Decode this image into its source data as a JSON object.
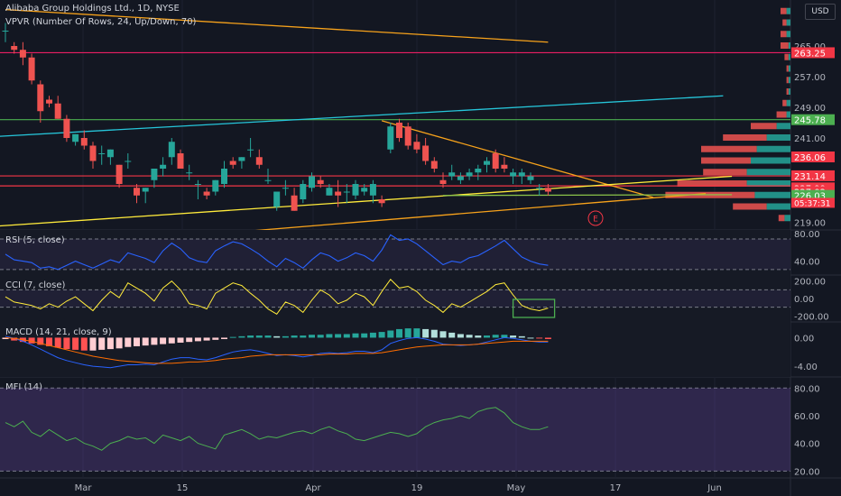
{
  "header": {
    "title": "Alibaba Group Holdings Ltd., 1D, NYSE",
    "vpvr": "VPVR (Number Of Rows, 24, Up/Down, 70)",
    "currency": "USD"
  },
  "earnings_marker": "E",
  "countdown": "05:37:31",
  "chart_data": [
    {
      "type": "candlestick",
      "name": "price",
      "y_range": [
        217,
        277
      ],
      "y_ticks": [
        "265.00",
        "257.00",
        "249.00",
        "241.00",
        "219.00"
      ],
      "x_ticks": [
        "Mar",
        "15",
        "Apr",
        "19",
        "May",
        "17",
        "Jun"
      ],
      "candles": [
        [
          269,
          271,
          266,
          269
        ],
        [
          265,
          266,
          263,
          264
        ],
        [
          264,
          266,
          260,
          262
        ],
        [
          262,
          263,
          255,
          256
        ],
        [
          255,
          256,
          245,
          248
        ],
        [
          251,
          252,
          249,
          250
        ],
        [
          250,
          252,
          246,
          246
        ],
        [
          246,
          247,
          240,
          241
        ],
        [
          240,
          242,
          239,
          242
        ],
        [
          241,
          243,
          238,
          239
        ],
        [
          239,
          240,
          233,
          235
        ],
        [
          237,
          239,
          234,
          237
        ],
        [
          236,
          238,
          234,
          238
        ],
        [
          234,
          234,
          228,
          229
        ],
        [
          235,
          237,
          233,
          235
        ],
        [
          228,
          229,
          224,
          226
        ],
        [
          227,
          228,
          224,
          228
        ],
        [
          230,
          233,
          228,
          233
        ],
        [
          233,
          236,
          231,
          234
        ],
        [
          236,
          241,
          234,
          240
        ],
        [
          237,
          238,
          233,
          233
        ],
        [
          232,
          234,
          230,
          232
        ],
        [
          229,
          230,
          225,
          229
        ],
        [
          227,
          228,
          225,
          226
        ],
        [
          227,
          230,
          226,
          230
        ],
        [
          229,
          235,
          228,
          233
        ],
        [
          235,
          236,
          233,
          234
        ],
        [
          235,
          236,
          233,
          236
        ],
        [
          238,
          241,
          236,
          238
        ],
        [
          236,
          238,
          233,
          234
        ],
        [
          230,
          233,
          229,
          230
        ],
        [
          223,
          227,
          222,
          227
        ],
        [
          228,
          230,
          226,
          228
        ],
        [
          226,
          228,
          222,
          222
        ],
        [
          225,
          230,
          224,
          229
        ],
        [
          228,
          232,
          227,
          231
        ],
        [
          230,
          231,
          228,
          229
        ],
        [
          226,
          229,
          226,
          228
        ],
        [
          227,
          230,
          223,
          226
        ],
        [
          227,
          229,
          224,
          227
        ],
        [
          226,
          230,
          225,
          229
        ],
        [
          227,
          229,
          226,
          228
        ],
        [
          226,
          230,
          224,
          229
        ],
        [
          225,
          226,
          223,
          224
        ],
        [
          238,
          245,
          237,
          244
        ],
        [
          245,
          246,
          240,
          241
        ],
        [
          244,
          245,
          238,
          239
        ],
        [
          240,
          242,
          237,
          238
        ],
        [
          239,
          241,
          234,
          235
        ],
        [
          235,
          236,
          232,
          233
        ],
        [
          230,
          232,
          228,
          229
        ],
        [
          231,
          234,
          230,
          232
        ],
        [
          230,
          232,
          229,
          231
        ],
        [
          231,
          233,
          230,
          232
        ],
        [
          232,
          234,
          230,
          233
        ],
        [
          234,
          236,
          232,
          235
        ],
        [
          237,
          238,
          232,
          233
        ],
        [
          234,
          236,
          232,
          233
        ],
        [
          231,
          233,
          229,
          232
        ],
        [
          231,
          233,
          229,
          232
        ],
        [
          230,
          232,
          229,
          231
        ],
        [
          228,
          229,
          226,
          228
        ],
        [
          228,
          229,
          226,
          227
        ]
      ],
      "price_labels": [
        {
          "value": 263.25,
          "text": "263.25",
          "color": "#f23645"
        },
        {
          "value": 245.78,
          "text": "245.78",
          "color": "#4caf50"
        },
        {
          "value": 236.06,
          "text": "236.06",
          "color": "#f23645"
        },
        {
          "value": 231.14,
          "text": "231.14",
          "color": "#f23645"
        },
        {
          "value": 227.99,
          "text": "227.99",
          "color": "#f23645"
        },
        {
          "value": 227.02,
          "text": "227.02",
          "color": "#f23645"
        },
        {
          "value": 226.03,
          "text": "226.03",
          "color": "#4caf50"
        }
      ],
      "drawings": [
        {
          "kind": "trendline",
          "color": "#f7a21b",
          "points": [
            [
              0,
              274.5
            ],
            [
              62,
              266
            ]
          ]
        },
        {
          "kind": "horizontal",
          "color": "#e91e63",
          "value": 263.25
        },
        {
          "kind": "horizontal",
          "color": "#4caf50",
          "value": 245.78
        },
        {
          "kind": "trendline",
          "color": "#26c6da",
          "points": [
            [
              -8,
              240.5
            ],
            [
              82,
              252
            ]
          ]
        },
        {
          "kind": "horizontal",
          "color": "#f23645",
          "value": 231.1
        },
        {
          "kind": "horizontal",
          "color": "#f23645",
          "value": 228.5
        },
        {
          "kind": "trendline",
          "color": "#f7a21b",
          "points": [
            [
              43,
              245.5
            ],
            [
              74,
              225.5
            ]
          ]
        },
        {
          "kind": "trendline",
          "color": "#ffeb3b",
          "points": [
            [
              -1,
              218
            ],
            [
              83,
              231
            ]
          ]
        },
        {
          "kind": "trendline",
          "color": "#f7a21b",
          "points": [
            [
              -8,
              210
            ],
            [
              80,
              226.5
            ]
          ]
        },
        {
          "kind": "trendline",
          "color": "#8bc34a",
          "points": [
            [
              50,
              226
            ],
            [
              83,
              226.2
            ]
          ]
        }
      ],
      "volume_profile": [
        {
          "price": 274,
          "up": 2,
          "down": 3
        },
        {
          "price": 271,
          "up": 2,
          "down": 2
        },
        {
          "price": 268,
          "up": 2,
          "down": 3
        },
        {
          "price": 265,
          "up": 1,
          "down": 4
        },
        {
          "price": 262,
          "up": 1,
          "down": 2
        },
        {
          "price": 259,
          "up": 1,
          "down": 1
        },
        {
          "price": 256,
          "up": 1,
          "down": 1
        },
        {
          "price": 253,
          "up": 1,
          "down": 1
        },
        {
          "price": 250,
          "up": 2,
          "down": 2
        },
        {
          "price": 247,
          "up": 2,
          "down": 5
        },
        {
          "price": 244,
          "up": 7,
          "down": 13
        },
        {
          "price": 241,
          "up": 12,
          "down": 22
        },
        {
          "price": 238,
          "up": 17,
          "down": 28
        },
        {
          "price": 235,
          "up": 20,
          "down": 25
        },
        {
          "price": 232,
          "up": 22,
          "down": 22
        },
        {
          "price": 229,
          "up": 22,
          "down": 35
        },
        {
          "price": 226,
          "up": 18,
          "down": 45
        },
        {
          "price": 223,
          "up": 12,
          "down": 17
        },
        {
          "price": 220,
          "up": 3,
          "down": 3
        }
      ]
    },
    {
      "type": "line",
      "name": "RSI (5, close)",
      "y_range": [
        20,
        85
      ],
      "y_ticks": [
        "80.00",
        "40.00"
      ],
      "bands": [
        72,
        28
      ],
      "values": [
        50,
        42,
        40,
        38,
        30,
        32,
        28,
        34,
        40,
        35,
        30,
        36,
        42,
        38,
        52,
        48,
        44,
        38,
        55,
        66,
        58,
        45,
        40,
        38,
        55,
        62,
        68,
        65,
        58,
        50,
        40,
        32,
        44,
        38,
        30,
        42,
        52,
        48,
        40,
        45,
        52,
        48,
        40,
        56,
        78,
        70,
        72,
        65,
        55,
        45,
        35,
        40,
        38,
        45,
        48,
        55,
        62,
        70,
        58,
        46,
        40,
        36,
        34
      ],
      "color": "#2962ff"
    },
    {
      "type": "line",
      "name": "CCI (7, close)",
      "y_range": [
        -270,
        270
      ],
      "y_ticks": [
        "200.00",
        "0.00",
        "-200.00"
      ],
      "bands": [
        100,
        -100
      ],
      "values": [
        20,
        -40,
        -60,
        -80,
        -120,
        -60,
        -100,
        -30,
        20,
        -60,
        -140,
        -20,
        80,
        10,
        180,
        120,
        60,
        -30,
        120,
        200,
        100,
        -60,
        -80,
        -120,
        60,
        120,
        180,
        150,
        60,
        -20,
        -120,
        -180,
        -40,
        -80,
        -160,
        -20,
        100,
        40,
        -60,
        -20,
        60,
        20,
        -80,
        80,
        220,
        120,
        140,
        80,
        -20,
        -80,
        -160,
        -60,
        -100,
        -40,
        20,
        80,
        160,
        180,
        40,
        -80,
        -120,
        -140,
        -110
      ],
      "color": "#ffeb3b"
    },
    {
      "type": "histogram+line",
      "name": "MACD (14, 21, close, 9)",
      "y_range": [
        -5.5,
        2.2
      ],
      "y_ticks": [
        "0.00",
        "-4.00"
      ],
      "histogram": [
        -0.2,
        -0.4,
        -0.6,
        -0.8,
        -1.0,
        -1.2,
        -1.4,
        -1.6,
        -1.7,
        -1.8,
        -1.8,
        -1.7,
        -1.6,
        -1.5,
        -1.3,
        -1.2,
        -1.1,
        -1.0,
        -0.9,
        -0.8,
        -0.7,
        -0.6,
        -0.5,
        -0.4,
        -0.3,
        -0.2,
        0.1,
        0.2,
        0.3,
        0.3,
        0.3,
        0.2,
        0.2,
        0.3,
        0.3,
        0.4,
        0.4,
        0.5,
        0.5,
        0.5,
        0.6,
        0.6,
        0.7,
        0.8,
        1.0,
        1.2,
        1.3,
        1.3,
        1.2,
        1.1,
        0.9,
        0.7,
        0.5,
        0.4,
        0.3,
        0.3,
        0.4,
        0.4,
        0.3,
        0.2,
        0.0,
        -0.1,
        -0.2
      ],
      "macd": [
        0.2,
        -0.1,
        -0.5,
        -1.0,
        -1.6,
        -2.2,
        -2.8,
        -3.2,
        -3.5,
        -3.8,
        -4.0,
        -4.1,
        -4.2,
        -4.0,
        -3.8,
        -3.8,
        -3.7,
        -3.8,
        -3.4,
        -3.0,
        -2.8,
        -2.8,
        -3.0,
        -3.1,
        -2.8,
        -2.4,
        -2.0,
        -1.8,
        -1.7,
        -1.9,
        -2.2,
        -2.5,
        -2.4,
        -2.5,
        -2.7,
        -2.5,
        -2.2,
        -2.1,
        -2.2,
        -2.1,
        -1.9,
        -1.9,
        -2.1,
        -1.7,
        -0.8,
        -0.4,
        -0.1,
        0.0,
        -0.2,
        -0.5,
        -0.9,
        -1.0,
        -1.1,
        -1.0,
        -0.9,
        -0.6,
        -0.3,
        0.0,
        -0.1,
        -0.3,
        -0.5,
        -0.6,
        -0.6
      ],
      "signal": [
        0.0,
        -0.1,
        -0.3,
        -0.5,
        -0.8,
        -1.1,
        -1.4,
        -1.7,
        -2.0,
        -2.3,
        -2.6,
        -2.8,
        -3.0,
        -3.2,
        -3.3,
        -3.4,
        -3.5,
        -3.6,
        -3.6,
        -3.6,
        -3.5,
        -3.4,
        -3.4,
        -3.3,
        -3.2,
        -3.0,
        -2.9,
        -2.8,
        -2.6,
        -2.5,
        -2.4,
        -2.4,
        -2.4,
        -2.4,
        -2.4,
        -2.4,
        -2.4,
        -2.3,
        -2.3,
        -2.3,
        -2.2,
        -2.2,
        -2.2,
        -2.1,
        -1.9,
        -1.7,
        -1.5,
        -1.3,
        -1.2,
        -1.1,
        -1.0,
        -1.0,
        -1.0,
        -1.0,
        -0.9,
        -0.8,
        -0.7,
        -0.6,
        -0.5,
        -0.5,
        -0.5,
        -0.5,
        -0.5
      ],
      "macd_color": "#2962ff",
      "signal_color": "#ff6d00"
    },
    {
      "type": "line",
      "name": "MFI (14)",
      "y_range": [
        15,
        88
      ],
      "y_ticks": [
        "80.00",
        "60.00",
        "40.00",
        "20.00"
      ],
      "bands": [
        80,
        20
      ],
      "values": [
        55,
        52,
        56,
        48,
        45,
        50,
        46,
        42,
        44,
        40,
        38,
        35,
        40,
        42,
        45,
        43,
        44,
        40,
        46,
        44,
        42,
        45,
        40,
        38,
        36,
        46,
        48,
        50,
        47,
        43,
        45,
        44,
        46,
        48,
        49,
        47,
        50,
        52,
        49,
        47,
        43,
        42,
        44,
        46,
        48,
        47,
        45,
        47,
        52,
        55,
        57,
        58,
        60,
        58,
        63,
        65,
        66,
        62,
        55,
        52,
        50,
        50,
        52
      ],
      "color": "#4caf50"
    }
  ]
}
